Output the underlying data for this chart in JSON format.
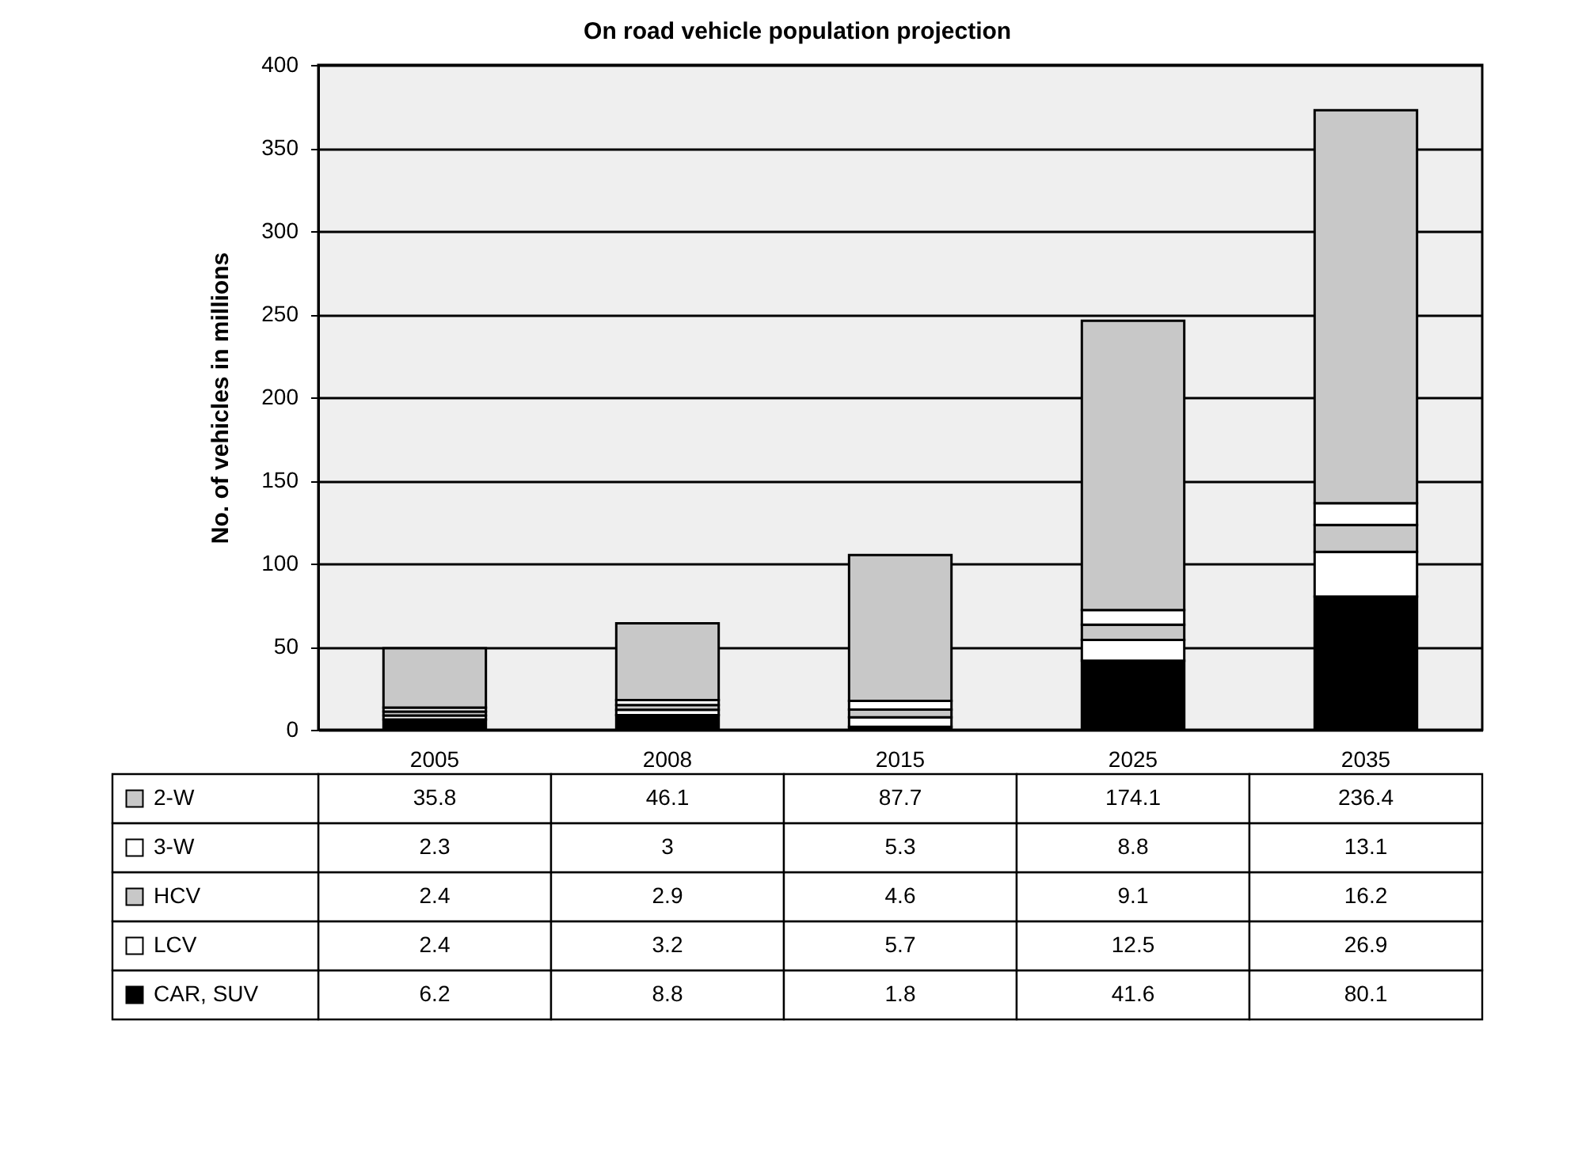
{
  "chart_data": {
    "type": "bar",
    "title": "On road vehicle population projection",
    "ylabel": "No. of vehicles in millions",
    "categories": [
      "2005",
      "2008",
      "2015",
      "2025",
      "2035"
    ],
    "stacked": true,
    "data_labels": true,
    "grid": "y",
    "legend": "bottom left",
    "ylim": [
      0,
      400
    ],
    "yticks": [
      0,
      50,
      100,
      150,
      200,
      250,
      300,
      350,
      400
    ],
    "series": [
      {
        "name": "CAR, SUV",
        "color": "#000000",
        "values": [
          6.2,
          8.8,
          1.8,
          41.6,
          80.1
        ]
      },
      {
        "name": "LCV",
        "color": "#ffffff",
        "values": [
          2.4,
          3.2,
          5.7,
          12.5,
          26.9
        ]
      },
      {
        "name": "HCV",
        "color": "#c8c8c8",
        "values": [
          2.4,
          2.9,
          4.6,
          9.1,
          16.2
        ]
      },
      {
        "name": "3-W",
        "color": "#ffffff",
        "values": [
          2.3,
          3,
          5.3,
          8.8,
          13.1
        ]
      },
      {
        "name": "2-W",
        "color": "#c8c8c8",
        "values": [
          35.8,
          46.1,
          87.7,
          174.1,
          236.4
        ]
      }
    ]
  }
}
